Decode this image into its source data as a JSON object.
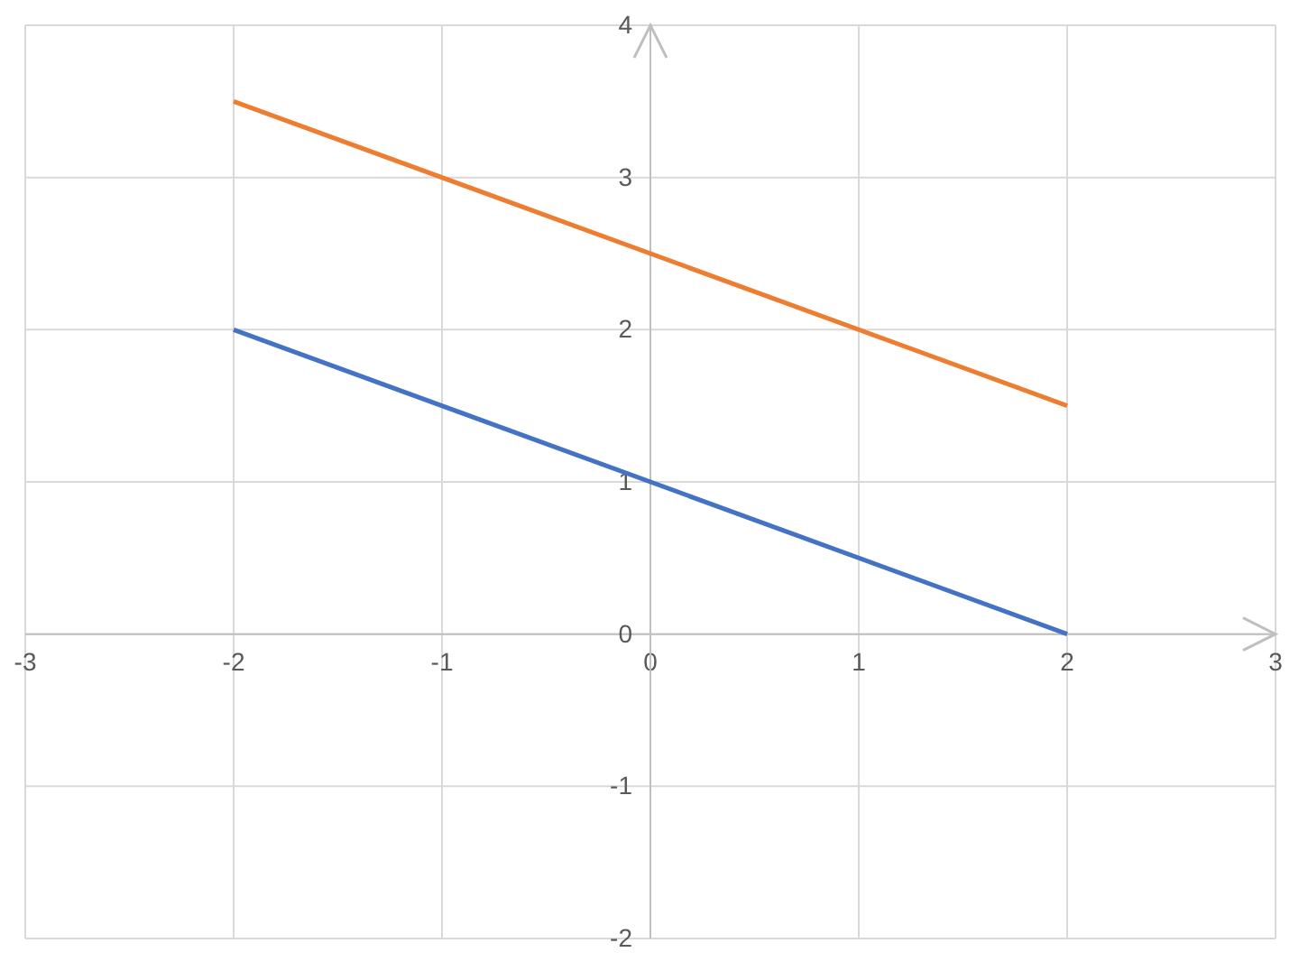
{
  "chart_data": {
    "type": "line",
    "xlim": [
      -3,
      3
    ],
    "ylim": [
      -2,
      4
    ],
    "xticks": [
      -3,
      -2,
      -1,
      0,
      1,
      2,
      3
    ],
    "yticks": [
      -2,
      -1,
      0,
      1,
      2,
      3,
      4
    ],
    "grid": true,
    "marker": "none",
    "line_style": "solid",
    "x": [
      -2,
      2
    ],
    "series": [
      {
        "color": "#4472c4",
        "values": [
          2,
          0
        ]
      },
      {
        "color": "#ed7d31",
        "values": [
          3.5,
          1.5
        ]
      }
    ]
  }
}
